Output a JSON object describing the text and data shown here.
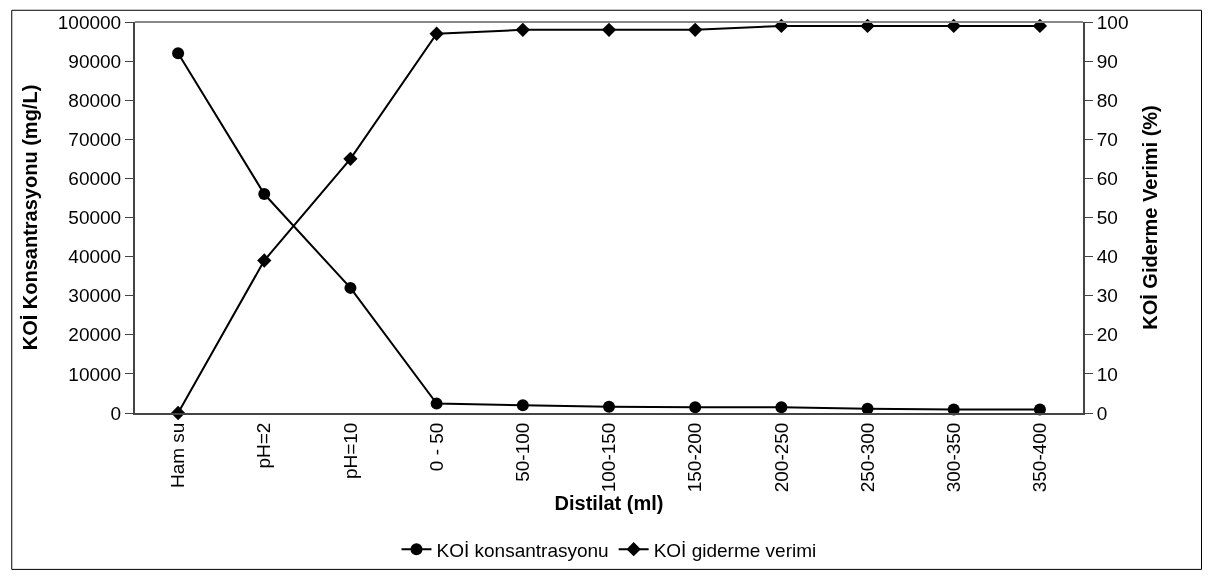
{
  "chart_data": {
    "type": "line",
    "xlabel": "Distilat (ml)",
    "ylabel": "KOİ Konsantrasyonu (mg/L)",
    "y2label": "KOİ Giderme Verimi (%)",
    "categories": [
      "Ham su",
      "pH=2",
      "pH=10",
      "0 - 50",
      "50-100",
      "100-150",
      "150-200",
      "200-250",
      "250-300",
      "300-350",
      "350-400"
    ],
    "series": [
      {
        "name": "KOİ konsantrasyonu",
        "color": "#000000",
        "marker": "circle",
        "values": [
          92000,
          56000,
          32000,
          2400,
          2000,
          1600,
          1500,
          1500,
          1100,
          900,
          900
        ]
      },
      {
        "name": "KOİ giderme verimi",
        "color": "#000000",
        "marker": "diamond",
        "axis": "y2",
        "values": [
          0,
          39,
          65,
          97,
          98,
          98,
          98,
          99,
          99,
          99,
          99
        ]
      }
    ],
    "ylim": [
      0,
      100000
    ],
    "yticks": [
      0,
      10000,
      20000,
      30000,
      40000,
      50000,
      60000,
      70000,
      80000,
      90000,
      100000
    ],
    "y2lim": [
      0,
      100
    ],
    "y2ticks": [
      0,
      10,
      20,
      30,
      40,
      50,
      60,
      70,
      80,
      90,
      100
    ],
    "legend": "bottom",
    "line_style": "solid"
  }
}
